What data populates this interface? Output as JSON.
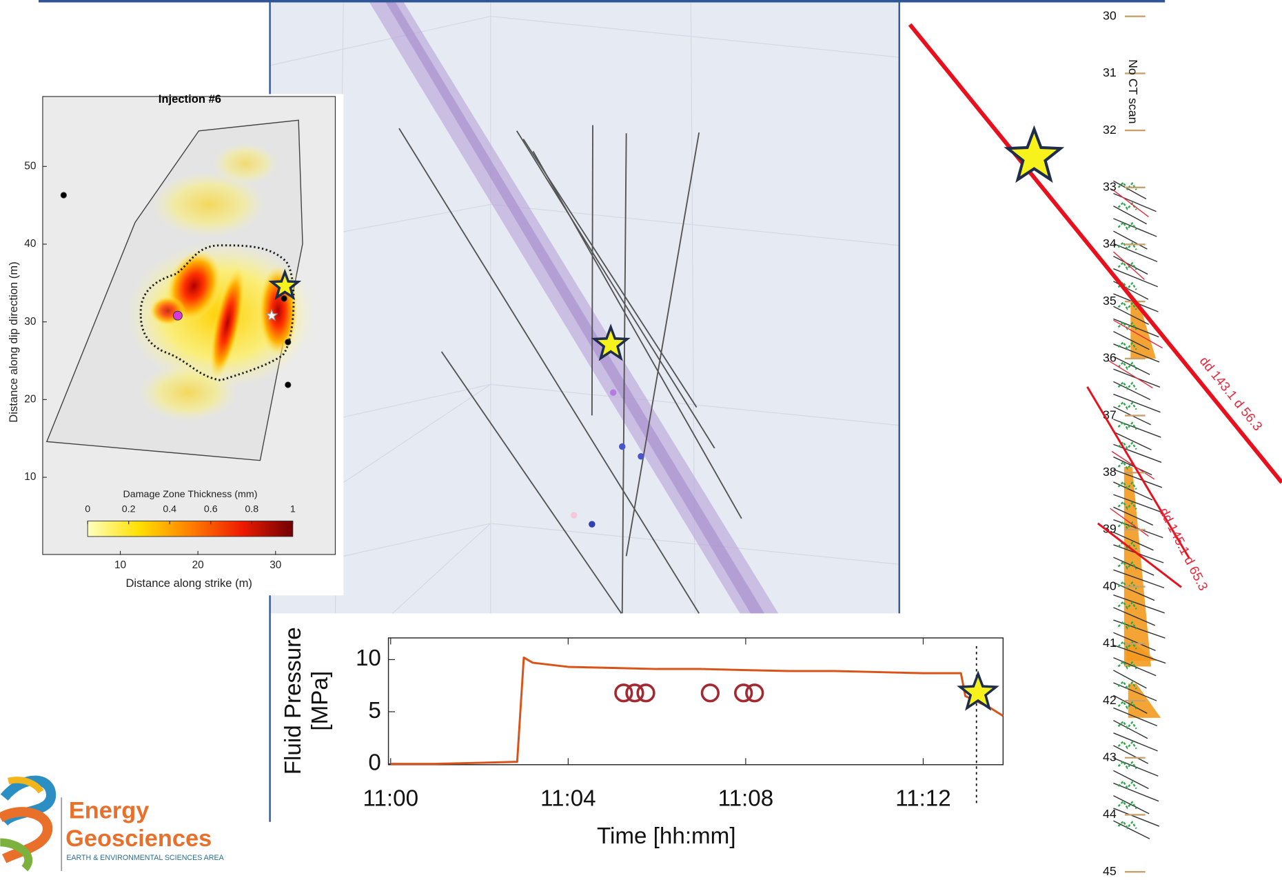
{
  "chart_data": [
    {
      "type": "scatter",
      "title": "Injection #6",
      "xlabel": "Distance along strike (m)",
      "ylabel": "Distance along dip direction (m)",
      "xlim": [
        0,
        37.7
      ],
      "ylim": [
        0,
        59
      ],
      "xticks": [
        10,
        20,
        30
      ],
      "yticks": [
        10,
        20,
        30,
        40,
        50
      ],
      "series": [
        {
          "color": "#000000",
          "marker": "circle",
          "x": [
            2.7,
            31.1,
            31.6,
            31.6
          ],
          "values": [
            46.3,
            33.0,
            27.4,
            21.9
          ]
        },
        {
          "color": "#d63ad6",
          "marker": "circle",
          "x": [
            17.4
          ],
          "values": [
            30.8
          ]
        },
        {
          "color": "#ffffff",
          "marker": "star",
          "x": [
            29.5
          ],
          "values": [
            30.8
          ]
        },
        {
          "color": "#f7f21c",
          "marker": "star",
          "x": [
            31.2
          ],
          "values": [
            34.6
          ]
        }
      ],
      "colorbar": {
        "label": "Damage Zone Thickness (mm)",
        "lim": [
          0,
          1
        ],
        "ticks": [
          0,
          0.2,
          0.4,
          0.6,
          0.8,
          1
        ]
      }
    },
    {
      "type": "line",
      "xlabel": "Time [hh:mm]",
      "ylabel": [
        "Fluid Pressure",
        "[MPa]"
      ],
      "xlim": [
        -0.05,
        13.8
      ],
      "ylim": [
        0,
        12
      ],
      "xticks": [
        {
          "value": 0,
          "label": "11:00"
        },
        {
          "value": 4,
          "label": "11:04"
        },
        {
          "value": 8,
          "label": "11:08"
        },
        {
          "value": 12,
          "label": "11:12"
        }
      ],
      "yticks": [
        0,
        5,
        10
      ],
      "series": [
        {
          "color": "#d95319",
          "x": [
            0,
            1,
            2,
            2.85,
            3.0,
            3.2,
            4,
            5,
            6,
            7,
            8,
            9,
            10,
            11,
            12,
            12.85,
            12.95,
            13.5,
            13.8
          ],
          "values": [
            0,
            0,
            0.1,
            0.2,
            10.2,
            9.7,
            9.3,
            9.2,
            9.1,
            9.1,
            9.0,
            8.9,
            8.9,
            8.8,
            8.7,
            8.7,
            6.5,
            5.4,
            4.6
          ]
        },
        {
          "color": "#a3282f",
          "marker": "circle",
          "x": [
            5.25,
            5.5,
            5.75,
            7.2,
            7.95,
            8.2
          ],
          "values": [
            6.8,
            6.8,
            6.8,
            6.8,
            6.8,
            6.8
          ]
        }
      ],
      "vline": 13.2
    },
    {
      "type": "depth-log",
      "ylim": [
        30,
        45
      ],
      "yticks": [
        30,
        31,
        32,
        33,
        34,
        35,
        36,
        37,
        38,
        39,
        40,
        41,
        42,
        43,
        44,
        45
      ],
      "gap_label": "No CT scan",
      "annotations": [
        "dd 143.1 d 56.3",
        "dd 145.1 d 65.3"
      ]
    }
  ],
  "logo": {
    "title1": "Energy",
    "title2": "Geosciences",
    "subtitle": "EARTH & ENVIRONMENTAL SCIENCES AREA"
  }
}
